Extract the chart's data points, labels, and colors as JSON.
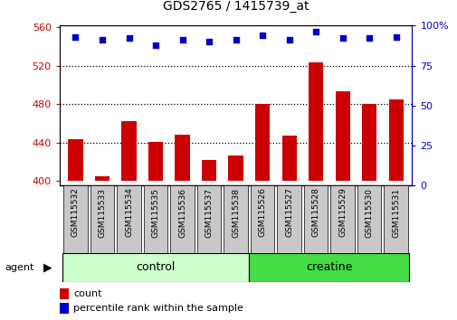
{
  "title": "GDS2765 / 1415739_at",
  "categories": [
    "GSM115532",
    "GSM115533",
    "GSM115534",
    "GSM115535",
    "GSM115536",
    "GSM115537",
    "GSM115538",
    "GSM115526",
    "GSM115527",
    "GSM115528",
    "GSM115529",
    "GSM115530",
    "GSM115531"
  ],
  "count_values": [
    443,
    405,
    462,
    441,
    448,
    422,
    426,
    480,
    447,
    524,
    493,
    480,
    485
  ],
  "percentile_values": [
    93,
    91,
    92,
    88,
    91,
    90,
    91,
    94,
    91,
    96,
    92,
    92,
    93
  ],
  "n_control": 7,
  "n_creatine": 6,
  "ylim_left": [
    395,
    562
  ],
  "ylim_right": [
    0,
    100
  ],
  "yticks_left": [
    400,
    440,
    480,
    520,
    560
  ],
  "yticks_right": [
    0,
    25,
    50,
    75,
    100
  ],
  "bar_color": "#cc0000",
  "dot_color": "#0000cc",
  "bar_bottom": 400,
  "control_color": "#ccffcc",
  "creatine_color": "#44dd44",
  "agent_label": "agent",
  "control_label": "control",
  "creatine_label": "creatine",
  "legend_count_label": "count",
  "legend_pct_label": "percentile rank within the sample",
  "grid_color": "black",
  "left_tick_color": "#cc0000",
  "right_tick_color": "#0000cc",
  "title_color": "black",
  "bar_width": 0.55,
  "xlabel_bg": "#c8c8c8",
  "grid_yticks": [
    440,
    480,
    520
  ]
}
